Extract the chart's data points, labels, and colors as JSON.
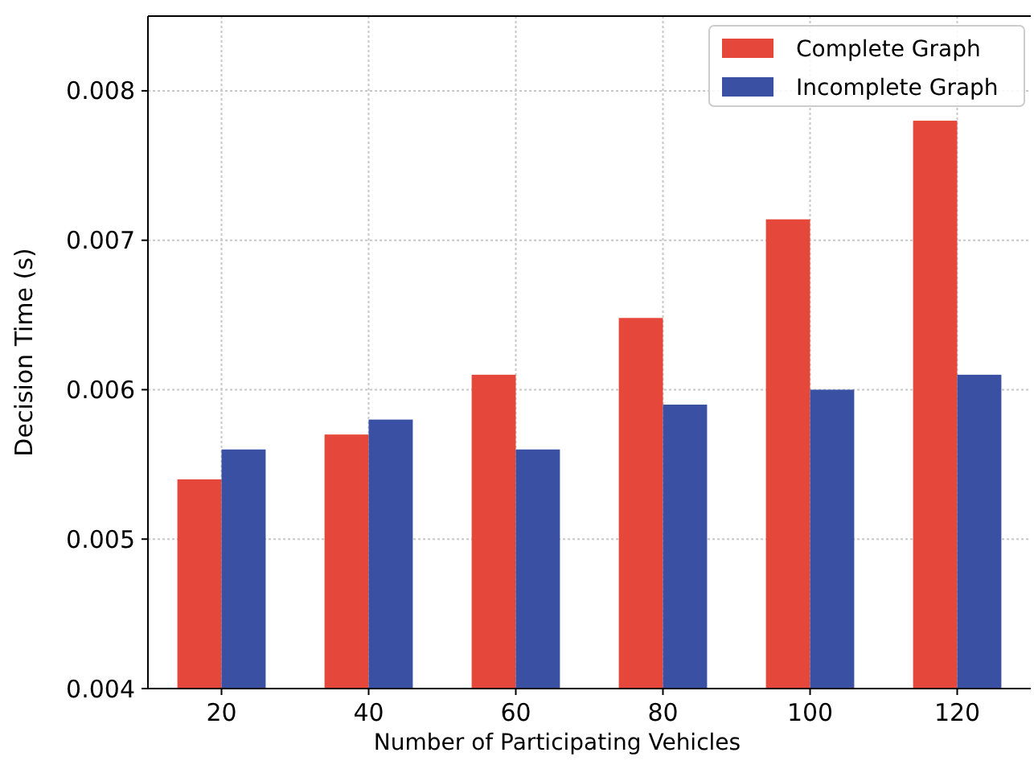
{
  "chart_data": {
    "type": "bar",
    "xlabel": "Number of Participating Vehicles",
    "ylabel": "Decision Time (s)",
    "categories": [
      "20",
      "40",
      "60",
      "80",
      "100",
      "120"
    ],
    "series": [
      {
        "name": "Complete Graph",
        "color": "#e5483a",
        "values": [
          0.0054,
          0.0057,
          0.0061,
          0.00648,
          0.00714,
          0.0078
        ]
      },
      {
        "name": "Incomplete Graph",
        "color": "#3a50a3",
        "values": [
          0.0056,
          0.0058,
          0.0056,
          0.0059,
          0.006,
          0.0061
        ]
      }
    ],
    "ylim": [
      0.004,
      0.0085
    ],
    "yticks": [
      0.004,
      0.005,
      0.006,
      0.007,
      0.008
    ],
    "grid": true,
    "legend": "top right"
  }
}
